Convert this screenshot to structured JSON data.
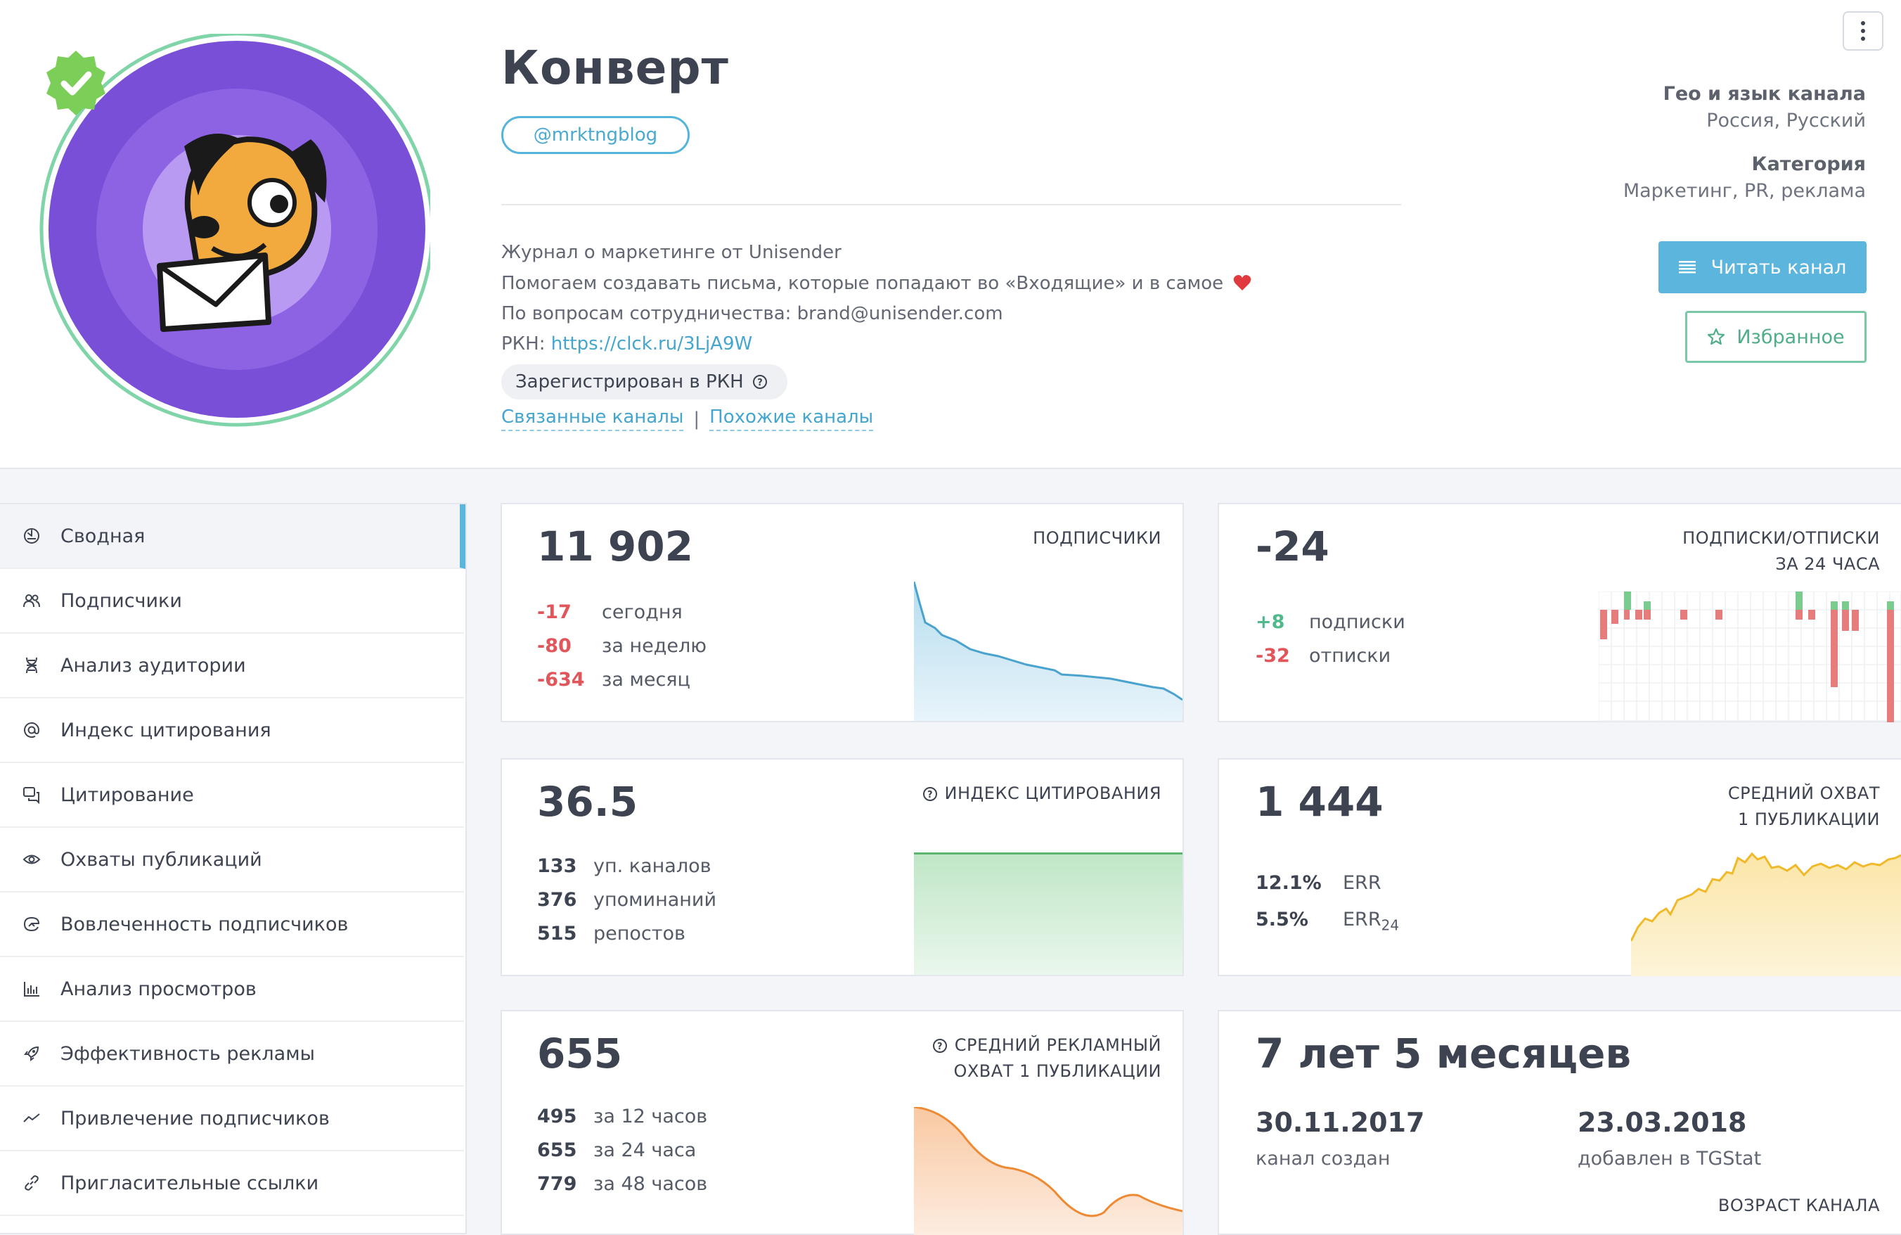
{
  "channel": {
    "title": "Конверт",
    "handle": "@mrktngblog",
    "description": [
      "Журнал о маркетинге от Unisender",
      "Помогаем создавать письма, которые попадают во «Входящие» и в самое",
      "По вопросам сотрудничества: brand@unisender.com"
    ],
    "rkn_label": "РКН:",
    "rkn_link": "https://clck.ru/3LjA9W",
    "rkn_badge": "Зарегистрирован в РКН",
    "related_link": "Связанные каналы",
    "separator": "|",
    "similar_link": "Похожие каналы",
    "geo_label": "Гео и язык канала",
    "geo_value": "Россия, Русский",
    "category_label": "Категория",
    "category_value": "Маркетинг, PR, реклама",
    "read_button": "Читать канал",
    "favorite_button": "Избранное",
    "verified": true
  },
  "sidebar": {
    "items": [
      {
        "label": "Сводная",
        "icon": "dashboard-icon",
        "active": true
      },
      {
        "label": "Подписчики",
        "icon": "users-icon"
      },
      {
        "label": "Анализ аудитории",
        "icon": "dna-icon"
      },
      {
        "label": "Индекс цитирования",
        "icon": "at-icon"
      },
      {
        "label": "Цитирование",
        "icon": "quotes-icon"
      },
      {
        "label": "Охваты публикаций",
        "icon": "eye-icon"
      },
      {
        "label": "Вовлеченность подписчиков",
        "icon": "engagement-icon"
      },
      {
        "label": "Анализ просмотров",
        "icon": "bar-chart-icon"
      },
      {
        "label": "Эффективность рекламы",
        "icon": "rocket-icon"
      },
      {
        "label": "Привлечение подписчиков",
        "icon": "trend-icon"
      },
      {
        "label": "Пригласительные ссылки",
        "icon": "link-icon"
      }
    ]
  },
  "cards": {
    "subscribers": {
      "value": "11 902",
      "caption": "ПОДПИСЧИКИ",
      "rows": [
        {
          "num": "-17",
          "label": "сегодня"
        },
        {
          "num": "-80",
          "label": "за неделю"
        },
        {
          "num": "-634",
          "label": "за месяц"
        }
      ]
    },
    "subs_unsubs": {
      "value": "-24",
      "caption1": "ПОДПИСКИ/ОТПИСКИ",
      "caption2": "ЗА 24 ЧАСА",
      "rows": [
        {
          "num": "+8",
          "label": "подписки"
        },
        {
          "num": "-32",
          "label": "отписки"
        }
      ]
    },
    "citation": {
      "value": "36.5",
      "caption": "ИНДЕКС ЦИТИРОВАНИЯ",
      "rows": [
        {
          "num": "133",
          "label": "уп. каналов"
        },
        {
          "num": "376",
          "label": "упоминаний"
        },
        {
          "num": "515",
          "label": "репостов"
        }
      ]
    },
    "reach": {
      "value": "1 444",
      "caption1": "СРЕДНИЙ ОХВАТ",
      "caption2": "1 ПУБЛИКАЦИИ",
      "rows": [
        {
          "num": "12.1%",
          "label": "ERR",
          "sub": ""
        },
        {
          "num": "5.5%",
          "label": "ERR",
          "sub": "24"
        }
      ]
    },
    "ad_reach": {
      "value": "655",
      "caption1": "СРЕДНИЙ РЕКЛАМНЫЙ",
      "caption2": "ОХВАТ 1 ПУБЛИКАЦИИ",
      "rows": [
        {
          "num": "495",
          "label": "за 12 часов"
        },
        {
          "num": "655",
          "label": "за 24 часа"
        },
        {
          "num": "779",
          "label": "за 48 часов"
        }
      ]
    },
    "age": {
      "value": "7 лет 5 месяцев",
      "created_date": "30.11.2017",
      "created_label": "канал создан",
      "added_date": "23.03.2018",
      "added_label": "добавлен в TGStat",
      "caption": "ВОЗРАСТ КАНАЛА"
    }
  },
  "colors": {
    "accent": "#5cb5dd",
    "negative": "#e0565b",
    "positive": "#4fb98b",
    "avatar_purple": "#7a4fd8",
    "verified_green": "#7bcf58"
  }
}
